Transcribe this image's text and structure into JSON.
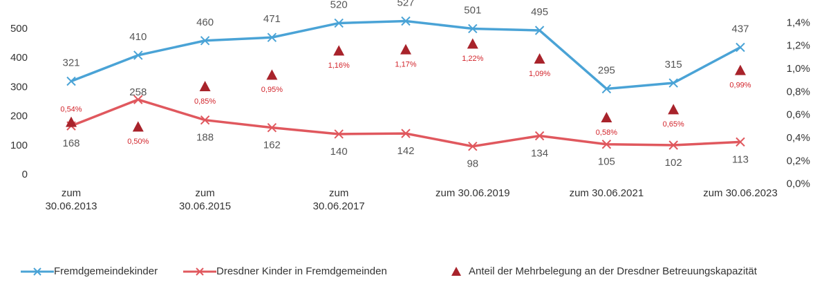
{
  "chart_data": {
    "type": "line",
    "categories": [
      "zum 30.06.2013",
      null,
      "zum 30.06.2015",
      null,
      "zum 30.06.2017",
      null,
      "zum 30.06.2019",
      null,
      "zum 30.06.2021",
      null,
      "zum 30.06.2023"
    ],
    "series": [
      {
        "name": "Fremdgemeindekinder",
        "color": "#4aa3d6",
        "values": [
          321,
          410,
          460,
          471,
          520,
          527,
          501,
          495,
          295,
          315,
          437
        ]
      },
      {
        "name": "Dresdner Kinder in Fremdgemeinden",
        "color": "#e0585e",
        "values": [
          168,
          258,
          188,
          162,
          140,
          142,
          98,
          134,
          105,
          102,
          113
        ]
      },
      {
        "name": "Anteil der Mehrbelegung an der Dresdner Betreuungskapazität",
        "color": "#a8232b",
        "type": "scatter",
        "axis": "y2",
        "values": [
          0.54,
          0.5,
          0.85,
          0.95,
          1.16,
          1.17,
          1.22,
          1.09,
          0.58,
          0.65,
          0.99
        ],
        "value_labels": [
          "0,54%",
          "0,50%",
          "0,85%",
          "0,95%",
          "1,16%",
          "1,17%",
          "1,22%",
          "1,09%",
          "0,58%",
          "0,65%",
          "0,99%"
        ]
      }
    ],
    "ylim": [
      -40,
      540
    ],
    "yticks": [
      0,
      100,
      200,
      300,
      400,
      500
    ],
    "y2lim": [
      -0.02,
      1.45
    ],
    "y2ticks": [
      {
        "value": 0,
        "label": "0,0%"
      },
      {
        "value": 0.2,
        "label": "0,2%"
      },
      {
        "value": 0.4,
        "label": "0,4%"
      },
      {
        "value": 0.6,
        "label": "0,6%"
      },
      {
        "value": 0.8,
        "label": "0,8%"
      },
      {
        "value": 1.0,
        "label": "1,0%"
      },
      {
        "value": 1.2,
        "label": "1,2%"
      },
      {
        "value": 1.4,
        "label": "1,4%"
      }
    ],
    "grid": false,
    "legend": "bottom"
  }
}
